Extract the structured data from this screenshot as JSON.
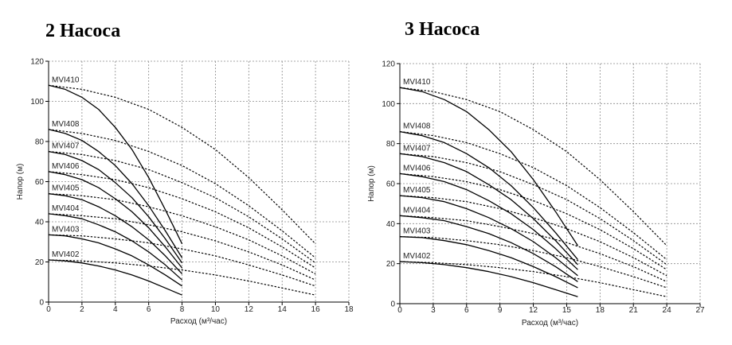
{
  "chart_data": [
    {
      "type": "line",
      "title": "2 Насоса",
      "xlabel": "Расход (м³/час)",
      "ylabel": "Напор (м)",
      "xlim": [
        0,
        18
      ],
      "ylim": [
        0,
        120
      ],
      "xticks": [
        0,
        2,
        4,
        6,
        8,
        10,
        12,
        14,
        16,
        18
      ],
      "yticks": [
        0,
        20,
        40,
        60,
        80,
        100,
        120
      ],
      "grid": true,
      "series": [
        {
          "name": "MVI410",
          "solid": {
            "x": [
              0,
              1,
              2,
              3,
              4,
              5,
              6,
              7,
              8
            ],
            "y": [
              108,
              106,
              102,
              96,
              87,
              76,
              62,
              46,
              29
            ]
          },
          "dashed": {
            "x": [
              0,
              2,
              4,
              6,
              8,
              10,
              12,
              14,
              16
            ],
            "y": [
              108,
              106,
              102,
              96,
              87,
              76,
              62,
              46,
              29
            ]
          }
        },
        {
          "name": "MVI408",
          "solid": {
            "x": [
              0,
              1,
              2,
              3,
              4,
              5,
              6,
              7,
              8
            ],
            "y": [
              86,
              84,
              80.5,
              75,
              68,
              59,
              48,
              35.5,
              22
            ]
          },
          "dashed": {
            "x": [
              0,
              2,
              4,
              6,
              8,
              10,
              12,
              14,
              16
            ],
            "y": [
              86,
              84,
              80.5,
              75,
              68,
              59,
              48,
              35.5,
              22
            ]
          }
        },
        {
          "name": "MVI407",
          "solid": {
            "x": [
              0,
              1,
              2,
              3,
              4,
              5,
              6,
              7,
              8
            ],
            "y": [
              75,
              73.5,
              70.5,
              66,
              59.5,
              52,
              42.5,
              31.5,
              19.5
            ]
          },
          "dashed": {
            "x": [
              0,
              2,
              4,
              6,
              8,
              10,
              12,
              14,
              16
            ],
            "y": [
              75,
              73.5,
              70.5,
              66,
              59.5,
              52,
              42.5,
              31.5,
              19.5
            ]
          }
        },
        {
          "name": "MVI406",
          "solid": {
            "x": [
              0,
              1,
              2,
              3,
              4,
              5,
              6,
              7,
              8
            ],
            "y": [
              65,
              63.5,
              61,
              57,
              51.5,
              45,
              37,
              27.5,
              17
            ]
          },
          "dashed": {
            "x": [
              0,
              2,
              4,
              6,
              8,
              10,
              12,
              14,
              16
            ],
            "y": [
              65,
              63.5,
              61,
              57,
              51.5,
              45,
              37,
              27.5,
              17
            ]
          }
        },
        {
          "name": "MVI405",
          "solid": {
            "x": [
              0,
              1,
              2,
              3,
              4,
              5,
              6,
              7,
              8
            ],
            "y": [
              54,
              53,
              51,
              47.5,
              43,
              37.5,
              31,
              23,
              14
            ]
          },
          "dashed": {
            "x": [
              0,
              2,
              4,
              6,
              8,
              10,
              12,
              14,
              16
            ],
            "y": [
              54,
              53,
              51,
              47.5,
              43,
              37.5,
              31,
              23,
              14
            ]
          }
        },
        {
          "name": "MVI404",
          "solid": {
            "x": [
              0,
              1,
              2,
              3,
              4,
              5,
              6,
              7,
              8
            ],
            "y": [
              44,
              43,
              41.5,
              38.5,
              35,
              30.5,
              25,
              18.5,
              11
            ]
          },
          "dashed": {
            "x": [
              0,
              2,
              4,
              6,
              8,
              10,
              12,
              14,
              16
            ],
            "y": [
              44,
              43,
              41.5,
              38.5,
              35,
              30.5,
              25,
              18.5,
              11
            ]
          }
        },
        {
          "name": "MVI403",
          "solid": {
            "x": [
              0,
              1,
              2,
              3,
              4,
              5,
              6,
              7,
              8
            ],
            "y": [
              33.5,
              33,
              31.5,
              29.5,
              26.5,
              23,
              18.5,
              13.5,
              8
            ]
          },
          "dashed": {
            "x": [
              0,
              2,
              4,
              6,
              8,
              10,
              12,
              14,
              16
            ],
            "y": [
              33.5,
              33,
              31.5,
              29.5,
              26.5,
              23,
              18.5,
              13.5,
              8
            ]
          }
        },
        {
          "name": "MVI402",
          "solid": {
            "x": [
              0,
              1,
              2,
              3,
              4,
              5,
              6,
              7,
              8
            ],
            "y": [
              21,
              20.5,
              19.5,
              18,
              16,
              13.5,
              10.5,
              7,
              3.5
            ]
          },
          "dashed": {
            "x": [
              0,
              2,
              4,
              6,
              8,
              10,
              12,
              14,
              16
            ],
            "y": [
              21,
              20.5,
              19.5,
              18,
              16,
              13.5,
              10.5,
              7,
              3.5
            ]
          }
        }
      ]
    },
    {
      "type": "line",
      "title": "3 Насоса",
      "xlabel": "Расход (м³/час)",
      "ylabel": "Напор (м)",
      "xlim": [
        0,
        27
      ],
      "ylim": [
        0,
        120
      ],
      "xticks": [
        0,
        3,
        6,
        9,
        12,
        15,
        18,
        21,
        24,
        27
      ],
      "yticks": [
        0,
        20,
        40,
        60,
        80,
        100,
        120
      ],
      "grid": true,
      "series": [
        {
          "name": "MVI410",
          "solid": {
            "x": [
              0,
              2,
              4,
              6,
              8,
              10,
              12,
              14,
              16
            ],
            "y": [
              108,
              106,
              102,
              96,
              87,
              76,
              62,
              46,
              29
            ]
          },
          "dashed": {
            "x": [
              0,
              3,
              6,
              9,
              12,
              15,
              18,
              21,
              24
            ],
            "y": [
              108,
              106,
              102,
              96,
              87,
              76,
              62,
              46,
              29
            ]
          }
        },
        {
          "name": "MVI408",
          "solid": {
            "x": [
              0,
              2,
              4,
              6,
              8,
              10,
              12,
              14,
              16
            ],
            "y": [
              86,
              84,
              80.5,
              75,
              68,
              59,
              48,
              35.5,
              22
            ]
          },
          "dashed": {
            "x": [
              0,
              3,
              6,
              9,
              12,
              15,
              18,
              21,
              24
            ],
            "y": [
              86,
              84,
              80.5,
              75,
              68,
              59,
              48,
              35.5,
              22
            ]
          }
        },
        {
          "name": "MVI407",
          "solid": {
            "x": [
              0,
              2,
              4,
              6,
              8,
              10,
              12,
              14,
              16
            ],
            "y": [
              75,
              73.5,
              70.5,
              66,
              59.5,
              52,
              42.5,
              31.5,
              19.5
            ]
          },
          "dashed": {
            "x": [
              0,
              3,
              6,
              9,
              12,
              15,
              18,
              21,
              24
            ],
            "y": [
              75,
              73.5,
              70.5,
              66,
              59.5,
              52,
              42.5,
              31.5,
              19.5
            ]
          }
        },
        {
          "name": "MVI406",
          "solid": {
            "x": [
              0,
              2,
              4,
              6,
              8,
              10,
              12,
              14,
              16
            ],
            "y": [
              65,
              63.5,
              61,
              57,
              51.5,
              45,
              37,
              27.5,
              17
            ]
          },
          "dashed": {
            "x": [
              0,
              3,
              6,
              9,
              12,
              15,
              18,
              21,
              24
            ],
            "y": [
              65,
              63.5,
              61,
              57,
              51.5,
              45,
              37,
              27.5,
              17
            ]
          }
        },
        {
          "name": "MVI405",
          "solid": {
            "x": [
              0,
              2,
              4,
              6,
              8,
              10,
              12,
              14,
              16
            ],
            "y": [
              54,
              53,
              51,
              47.5,
              43,
              37.5,
              31,
              23,
              14
            ]
          },
          "dashed": {
            "x": [
              0,
              3,
              6,
              9,
              12,
              15,
              18,
              21,
              24
            ],
            "y": [
              54,
              53,
              51,
              47.5,
              43,
              37.5,
              31,
              23,
              14
            ]
          }
        },
        {
          "name": "MVI404",
          "solid": {
            "x": [
              0,
              2,
              4,
              6,
              8,
              10,
              12,
              14,
              16
            ],
            "y": [
              44,
              43,
              41.5,
              38.5,
              35,
              30.5,
              25,
              18.5,
              11
            ]
          },
          "dashed": {
            "x": [
              0,
              3,
              6,
              9,
              12,
              15,
              18,
              21,
              24
            ],
            "y": [
              44,
              43,
              41.5,
              38.5,
              35,
              30.5,
              25,
              18.5,
              11
            ]
          }
        },
        {
          "name": "MVI403",
          "solid": {
            "x": [
              0,
              2,
              4,
              6,
              8,
              10,
              12,
              14,
              16
            ],
            "y": [
              33.5,
              33,
              31.5,
              29.5,
              26.5,
              23,
              18.5,
              13.5,
              8
            ]
          },
          "dashed": {
            "x": [
              0,
              3,
              6,
              9,
              12,
              15,
              18,
              21,
              24
            ],
            "y": [
              33.5,
              33,
              31.5,
              29.5,
              26.5,
              23,
              18.5,
              13.5,
              8
            ]
          }
        },
        {
          "name": "MVI402",
          "solid": {
            "x": [
              0,
              2,
              4,
              6,
              8,
              10,
              12,
              14,
              16
            ],
            "y": [
              21,
              20.5,
              19.5,
              18,
              16,
              13.5,
              10.5,
              7,
              3.5
            ]
          },
          "dashed": {
            "x": [
              0,
              3,
              6,
              9,
              12,
              15,
              18,
              21,
              24
            ],
            "y": [
              21,
              20.5,
              19.5,
              18,
              16,
              13.5,
              10.5,
              7,
              3.5
            ]
          }
        }
      ]
    }
  ]
}
